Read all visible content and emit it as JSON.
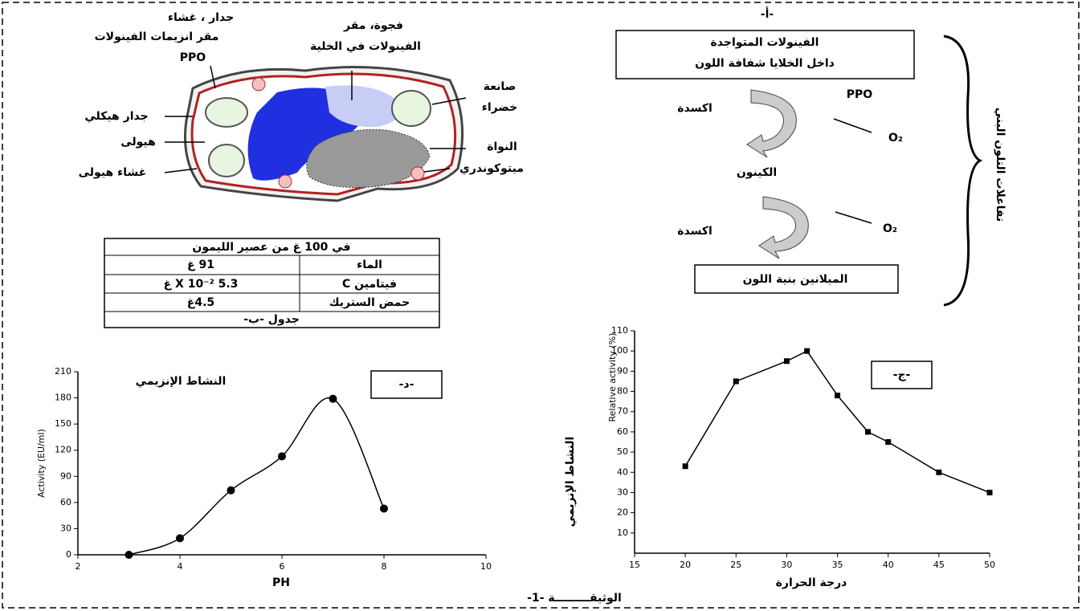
{
  "cell_diagram": {
    "wall_membrane": [
      "جدار ، غشاء",
      "مقر انزيمات الفينولات",
      "PPO"
    ],
    "vacuole": [
      "فجوة، مقر",
      "الفينولات في الخلية"
    ],
    "chloroplast": [
      "صانعة",
      "خضراء"
    ],
    "cell_wall": "جدار هيكلي",
    "cytoplasm": "هيولى",
    "plasma_membrane": "غشاء هيولى",
    "nucleus": "النواة",
    "mitochondria": "ميتوكوندري"
  },
  "scheme": {
    "label": "-أ-",
    "phenols": [
      "الفينولات المتواجدة",
      "داخل الخلايا شفافة اللون"
    ],
    "enzyme": "PPO",
    "oxidation": [
      "اكسدة",
      "اكسدة"
    ],
    "oxygen": [
      "O₂",
      "O₂"
    ],
    "quinone": "الكينون",
    "melanin": "الميلانين بنية اللون",
    "title": "تفاعلات التلون البني"
  },
  "table": {
    "header": "في 100 غ من عصير الليمون",
    "rows": [
      [
        "الماء",
        "91 غ"
      ],
      [
        "فيتامين C",
        "5.3 X 10⁻² غ"
      ],
      [
        "حمض الستريك",
        "4.5غ"
      ]
    ],
    "caption": "جدول -ب-"
  },
  "chart_data": [
    {
      "type": "line",
      "title": "النشاط الإنزيمي",
      "label": "-د-",
      "x_label": "PH",
      "y_label": "Activity (EU/ml)",
      "x": [
        3,
        4,
        5,
        6,
        7,
        8
      ],
      "values": [
        0,
        19,
        74,
        113,
        179,
        53
      ],
      "color": "#000000",
      "marker": "circle",
      "smooth": true,
      "xlim": [
        2,
        10
      ],
      "xticks": [
        2,
        4,
        6,
        8,
        10
      ],
      "ylim": [
        0,
        210
      ],
      "yticks": [
        0,
        30,
        60,
        90,
        120,
        150,
        180,
        210
      ]
    },
    {
      "type": "line",
      "label": "-ج-",
      "x_label": "درجة الحرارة",
      "y_label": "Relative activity (%)",
      "y_label_2": "النشاط الإنزيمي",
      "x": [
        20,
        25,
        30,
        32,
        35,
        38,
        40,
        45,
        50
      ],
      "values": [
        43,
        85,
        95,
        100,
        78,
        60,
        55,
        40,
        30
      ],
      "color": "#000000",
      "marker": "square",
      "smooth": false,
      "xlim": [
        15,
        50
      ],
      "xticks": [
        15,
        20,
        25,
        30,
        35,
        40,
        45,
        50
      ],
      "ylim": [
        0,
        110
      ],
      "yticks": [
        10,
        20,
        30,
        40,
        50,
        60,
        70,
        80,
        90,
        100,
        110
      ]
    }
  ],
  "caption": "الوثيقـــــــــة -1-"
}
